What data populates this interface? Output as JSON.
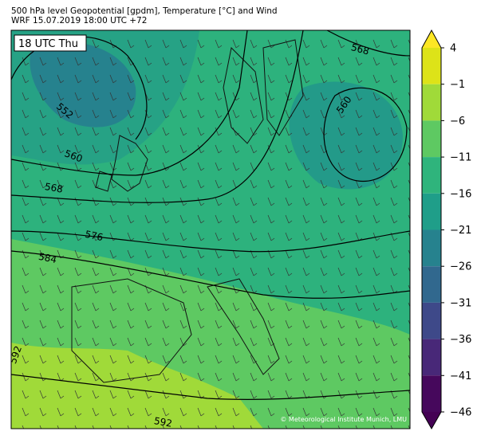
{
  "title": [
    "500 hPa level Geopotential [gpdm], Temperature [°C] and Wind",
    "WRF 15.07.2019 18:00 UTC +72"
  ],
  "time_label": "18 UTC Thu",
  "contour_labels": [
    "552",
    "560",
    "568",
    "576",
    "584",
    "592",
    "592",
    "568",
    "560"
  ],
  "copyright": "© Meteorological Institute Munich, LMU",
  "colorbar": {
    "ticks": [
      {
        "value": 4,
        "label": "4"
      },
      {
        "value": -1,
        "label": "−1"
      },
      {
        "value": -6,
        "label": "−6"
      },
      {
        "value": -11,
        "label": "−11"
      },
      {
        "value": -16,
        "label": "−16"
      },
      {
        "value": -21,
        "label": "−21"
      },
      {
        "value": -26,
        "label": "−26"
      },
      {
        "value": -31,
        "label": "−31"
      },
      {
        "value": -36,
        "label": "−36"
      },
      {
        "value": -41,
        "label": "−41"
      },
      {
        "value": -46,
        "label": "−46"
      }
    ],
    "colors": [
      "#fde725",
      "#dde318",
      "#a0da39",
      "#5ec962",
      "#2fb47c",
      "#1f9e89",
      "#26828e",
      "#31688e",
      "#3e4989",
      "#482878",
      "#46085c",
      "#440154"
    ]
  }
}
